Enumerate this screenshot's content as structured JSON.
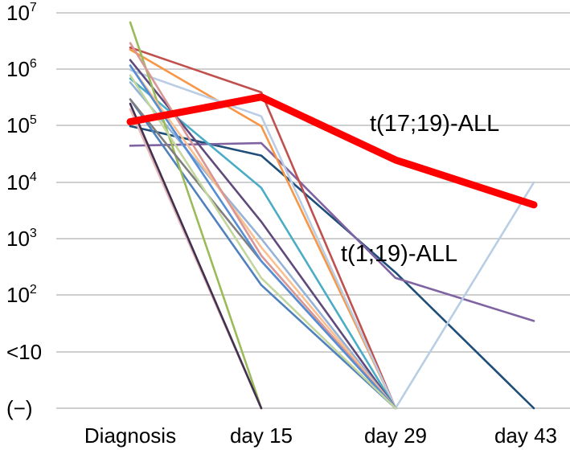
{
  "chart_data": {
    "type": "line",
    "categories": [
      "Diagnosis",
      "day 15",
      "day 29",
      "day 43"
    ],
    "y_ticks": [
      {
        "label": "(−)",
        "sup": ""
      },
      {
        "label": "<10",
        "sup": ""
      },
      {
        "label": "10",
        "sup": "2"
      },
      {
        "label": "10",
        "sup": "3"
      },
      {
        "label": "10",
        "sup": "4"
      },
      {
        "label": "10",
        "sup": "5"
      },
      {
        "label": "10",
        "sup": "6"
      },
      {
        "label": "10",
        "sup": "7"
      }
    ],
    "y_scale": "log (levels: (−), <10, 10^2 … 10^7)",
    "grid": true,
    "annotations": [
      {
        "text": "t(17;19)-ALL",
        "series": "t(17;19)-ALL"
      },
      {
        "text": "t(1;19)-ALL",
        "series": "t(1;19)-ALL"
      }
    ],
    "series": [
      {
        "name": "t(17;19)-ALL",
        "color": "#ff0000",
        "emphasis": true,
        "values": [
          120000,
          330000,
          25000,
          4000
        ]
      },
      {
        "name": "t(1;19)-ALL",
        "color": "#1f4e79",
        "values": [
          100000,
          30000,
          250,
          "(−)"
        ]
      },
      {
        "color": "#8064a2",
        "values": [
          45000,
          50000,
          200,
          35
        ]
      },
      {
        "color": "#c0504d",
        "values": [
          2500000,
          400000,
          "(−)",
          null
        ]
      },
      {
        "color": "#f79646",
        "values": [
          2300000,
          100000,
          "(−)",
          null
        ]
      },
      {
        "color": "#b9cde5",
        "values": [
          1000000,
          150000,
          "(−)",
          10000
        ]
      },
      {
        "color": "#4bacc6",
        "values": [
          700000,
          8000,
          "(−)",
          null
        ]
      },
      {
        "color": "#604a7b",
        "values": [
          1500000,
          2000,
          "(−)",
          null
        ]
      },
      {
        "color": "#95b3d7",
        "values": [
          600000,
          1000,
          "(−)",
          null
        ]
      },
      {
        "color": "#4f81bd",
        "values": [
          300000,
          150,
          "(−)",
          null
        ]
      },
      {
        "color": "#9bbb59",
        "values": [
          7000000,
          "(−)",
          null,
          null
        ]
      },
      {
        "color": "#e6b9b8",
        "values": [
          200000,
          "(−)",
          null,
          null
        ]
      },
      {
        "color": "#7f7f7f",
        "values": [
          300000,
          400,
          "(−)",
          null
        ]
      },
      {
        "color": "#403151",
        "values": [
          250000,
          "(−)",
          null,
          null
        ]
      },
      {
        "color": "#fac090",
        "values": [
          1200000,
          700,
          "(−)",
          null
        ]
      },
      {
        "color": "#d99694",
        "values": [
          3000000,
          500,
          "(−)",
          null
        ]
      },
      {
        "color": "#558ed5",
        "values": [
          1200000,
          400,
          "(−)",
          null
        ]
      },
      {
        "color": "#c3d69b",
        "values": [
          800000,
          200,
          "(−)",
          null
        ]
      }
    ]
  }
}
